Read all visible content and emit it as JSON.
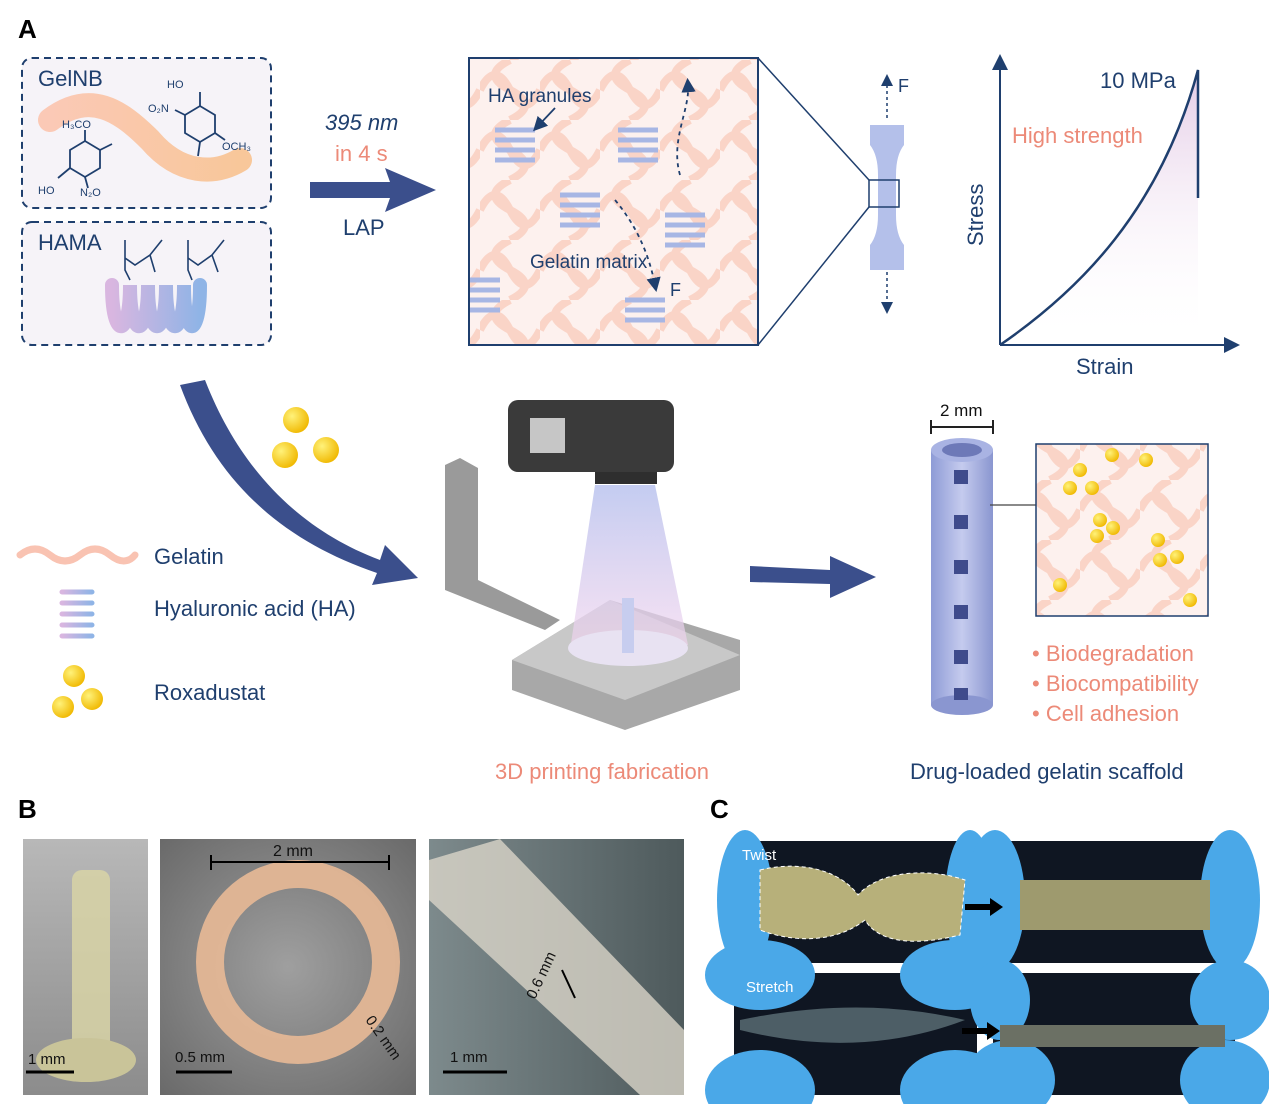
{
  "panel_labels": {
    "a": "A",
    "b": "B",
    "c": "C"
  },
  "gelnb_box": {
    "title": "GelNB",
    "chem": [
      "HO",
      "O₂N",
      "H₃CO",
      "OCH₃",
      "HO",
      "N₂O"
    ]
  },
  "hama_box": {
    "title": "HAMA"
  },
  "reaction": {
    "wavelength": "395 nm",
    "time": "in 4 s",
    "initiator": "LAP"
  },
  "network": {
    "granules_label": "HA granules",
    "matrix_label": "Gelatin matrix",
    "force_label": "F"
  },
  "specimen": {
    "force_label": "F"
  },
  "stress_strain": {
    "ylabel": "Stress",
    "xlabel": "Strain",
    "max_label": "10 MPa",
    "annotation": "High strength"
  },
  "legend": [
    {
      "icon": "gelatin-strand-icon",
      "label": "Gelatin"
    },
    {
      "icon": "hyaluronic-acid-helix-icon",
      "label": "Hyaluronic acid (HA)"
    },
    {
      "icon": "roxadustat-particles-icon",
      "label": "Roxadustat"
    }
  ],
  "printing": {
    "caption": "3D printing fabrication"
  },
  "scaffold": {
    "scale_label": "2 mm",
    "caption": "Drug-loaded gelatin scaffold",
    "properties": [
      "Biodegradation",
      "Biocompatibility",
      "Cell adhesion"
    ]
  },
  "panel_b": {
    "photos": [
      {
        "scale": "1 mm"
      },
      {
        "scale": "0.5 mm",
        "dimension_top": "2 mm",
        "dimension_wall": "0.2 mm"
      },
      {
        "scale": "1 mm",
        "dimension_hole": "0.6 mm"
      }
    ]
  },
  "panel_c": {
    "rows": [
      {
        "label": "Twist"
      },
      {
        "label": "Stretch"
      }
    ]
  },
  "colors": {
    "navy": "#1f3f6e",
    "salmon": "#ec8a78",
    "arrow": "#3b4f8c",
    "gold": "#f2c200",
    "glove": "#4aa8e8"
  }
}
